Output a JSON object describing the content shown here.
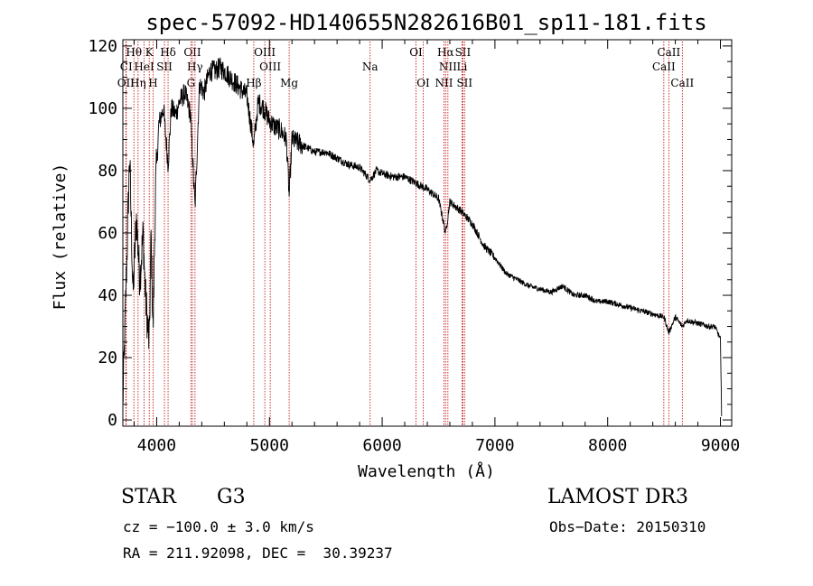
{
  "chart_data": {
    "type": "line",
    "title": "spec-57092-HD140655N282616B01_sp11-181.fits",
    "xlabel": "Wavelength (Å)",
    "ylabel": "Flux (relative)",
    "xlim": [
      3700,
      9100
    ],
    "ylim": [
      -2,
      122
    ],
    "xticks": [
      4000,
      5000,
      6000,
      7000,
      8000,
      9000
    ],
    "yticks": [
      0,
      20,
      40,
      60,
      80,
      100,
      120
    ],
    "spectrum_anchors": {
      "x": [
        3700,
        3730,
        3760,
        3790,
        3820,
        3850,
        3880,
        3900,
        3934,
        3950,
        3968,
        3990,
        4020,
        4060,
        4101,
        4130,
        4170,
        4200,
        4250,
        4300,
        4340,
        4380,
        4420,
        4470,
        4520,
        4560,
        4600,
        4650,
        4700,
        4750,
        4800,
        4861,
        4900,
        4950,
        5000,
        5050,
        5100,
        5150,
        5175,
        5200,
        5300,
        5400,
        5500,
        5600,
        5700,
        5800,
        5893,
        5950,
        6000,
        6100,
        6200,
        6300,
        6400,
        6500,
        6563,
        6600,
        6700,
        6800,
        6900,
        7000,
        7100,
        7200,
        7300,
        7400,
        7500,
        7600,
        7700,
        7800,
        7900,
        8000,
        8100,
        8200,
        8300,
        8400,
        8500,
        8542,
        8600,
        8662,
        8700,
        8800,
        8900,
        8950,
        9000,
        9010
      ],
      "y": [
        5,
        45,
        85,
        40,
        65,
        45,
        60,
        40,
        24,
        60,
        28,
        75,
        95,
        100,
        82,
        100,
        98,
        102,
        105,
        98,
        68,
        108,
        105,
        112,
        112,
        113,
        112,
        110,
        108,
        106,
        104,
        88,
        102,
        100,
        96,
        94,
        93,
        90,
        72,
        90,
        88,
        86,
        86,
        84,
        82,
        81,
        77,
        80,
        79,
        78,
        78,
        76,
        74,
        71,
        60,
        70,
        67,
        63,
        56,
        52,
        47,
        45,
        43,
        42,
        41,
        43,
        40,
        40,
        38,
        38,
        37,
        36,
        35,
        34,
        33,
        28,
        33,
        30,
        32,
        31,
        30,
        30,
        26,
        2
      ]
    },
    "lines_top": [
      {
        "label": "Hθ",
        "wl": 3798
      },
      {
        "label": "K",
        "wl": 3934
      },
      {
        "label": "Hδ",
        "wl": 4101
      },
      {
        "label": "OII",
        "wl": 4317
      },
      {
        "label": "OIII",
        "wl": 4959
      },
      {
        "label": "OI",
        "wl": 6300
      },
      {
        "label": "Hα",
        "wl": 6563
      },
      {
        "label": "SII",
        "wl": 6716
      },
      {
        "label": "CaII",
        "wl": 8542
      }
    ],
    "lines_mid": [
      {
        "label": "CI",
        "wl": 3730
      },
      {
        "label": "HeI",
        "wl": 3889
      },
      {
        "label": "SII",
        "wl": 4069
      },
      {
        "label": "Hγ",
        "wl": 4340
      },
      {
        "label": "OIII",
        "wl": 5007
      },
      {
        "label": "Na",
        "wl": 5893
      },
      {
        "label": "NII",
        "wl": 6583
      },
      {
        "label": "Li",
        "wl": 6708
      },
      {
        "label": "CaII",
        "wl": 8498
      }
    ],
    "lines_low": [
      {
        "label": "OII",
        "wl": 3727
      },
      {
        "label": "Hη",
        "wl": 3835
      },
      {
        "label": "H",
        "wl": 3968
      },
      {
        "label": "G",
        "wl": 4304
      },
      {
        "label": "Hβ",
        "wl": 4861
      },
      {
        "label": "Mg",
        "wl": 5175
      },
      {
        "label": "OI",
        "wl": 6364
      },
      {
        "label": "NII",
        "wl": 6548
      },
      {
        "label": "SII",
        "wl": 6731
      },
      {
        "label": "CaII",
        "wl": 8662
      }
    ]
  },
  "info": {
    "object_class": "STAR",
    "subclass": "G3",
    "survey": "LAMOST DR3",
    "cz": "cz = −100.0 ± 3.0 km/s",
    "obs_date": "Obs−Date: 20150310",
    "coords": "RA = 211.92098, DEC =  30.39237"
  },
  "colors": {
    "spectrum": "#000000",
    "line_markers": "#c00000"
  }
}
